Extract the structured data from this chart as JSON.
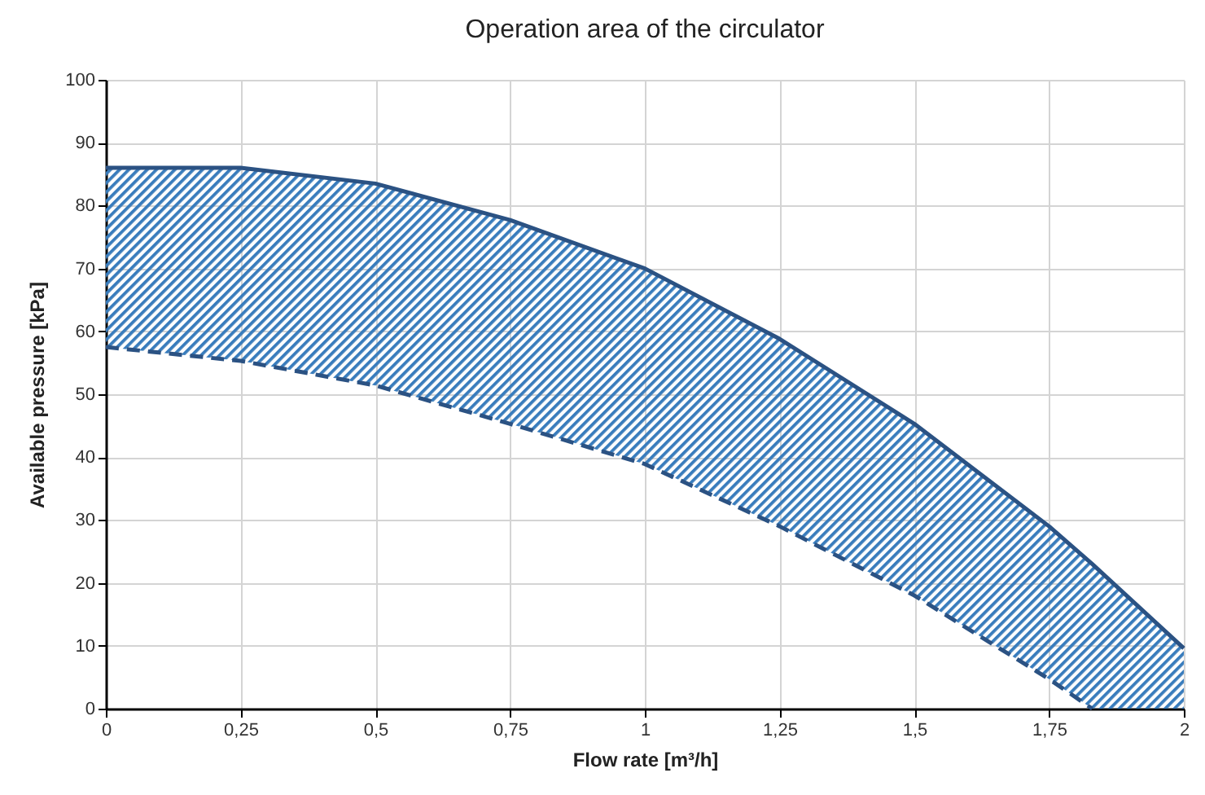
{
  "chart_data": {
    "type": "line",
    "title": "Operation area of the circulator",
    "xlabel": "Flow rate [m³/h]",
    "ylabel": "Available pressure [kPa]",
    "x": [
      0,
      0.25,
      0.5,
      0.75,
      1,
      1.25,
      1.5,
      1.75,
      1.83,
      2
    ],
    "series": [
      {
        "color": "#2b5283",
        "line_style": "solid",
        "values": [
          86,
          86,
          83.5,
          77.7,
          70,
          58.8,
          45.3,
          29,
          23,
          9.6
        ],
        "lower": [
          57.5,
          55.3,
          51.4,
          45.3,
          38.9,
          29,
          18,
          4.7,
          0,
          0
        ],
        "upper": [
          86,
          86,
          83.5,
          77.7,
          70,
          58.8,
          45.3,
          29,
          23,
          9.6
        ]
      },
      {
        "color": "#2b5283",
        "line_style": "dashed",
        "values": [
          57.5,
          55.3,
          51.4,
          45.3,
          38.9,
          29,
          18,
          4.7,
          0,
          null
        ]
      }
    ],
    "xlim": [
      0,
      2
    ],
    "xticks": [
      0,
      {
        "value": 0.25,
        "label": "0,25"
      },
      {
        "value": 0.5,
        "label": "0,5"
      },
      {
        "value": 0.75,
        "label": "0,75"
      },
      1,
      {
        "value": 1.25,
        "label": "1,25"
      },
      {
        "value": 1.5,
        "label": "1,5"
      },
      {
        "value": 1.75,
        "label": "1,75"
      },
      2
    ],
    "ylim": [
      0,
      100
    ],
    "yticks": [
      0,
      10,
      20,
      30,
      40,
      50,
      60,
      70,
      80,
      90,
      100
    ],
    "grid": true,
    "marker": "none"
  }
}
